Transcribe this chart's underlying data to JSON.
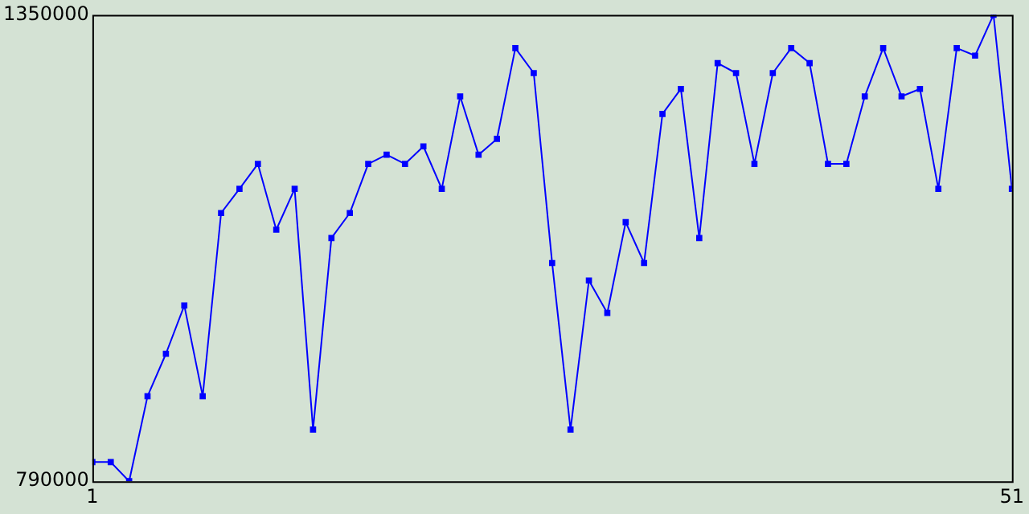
{
  "chart_data": {
    "type": "line",
    "marker": "square",
    "grid": false,
    "x": [
      1,
      2,
      3,
      4,
      5,
      6,
      7,
      8,
      9,
      10,
      11,
      12,
      13,
      14,
      15,
      16,
      17,
      18,
      19,
      20,
      21,
      22,
      23,
      24,
      25,
      26,
      27,
      28,
      29,
      30,
      31,
      32,
      33,
      34,
      35,
      36,
      37,
      38,
      39,
      40,
      41,
      42,
      43,
      44,
      45,
      46,
      47,
      48,
      49,
      50,
      51
    ],
    "series": [
      {
        "color": "#0000ff",
        "values": [
          813000,
          813000,
          790000,
          892000,
          943000,
          1001000,
          892000,
          1112000,
          1141000,
          1171000,
          1092000,
          1141000,
          852000,
          1082000,
          1112000,
          1171000,
          1182000,
          1171000,
          1192000,
          1141000,
          1252000,
          1182000,
          1201000,
          1310000,
          1280000,
          1052000,
          852000,
          1031000,
          992000,
          1101000,
          1052000,
          1231000,
          1261000,
          1082000,
          1292000,
          1280000,
          1171000,
          1280000,
          1310000,
          1292000,
          1171000,
          1171000,
          1252000,
          1310000,
          1252000,
          1261000,
          1141000,
          1310000,
          1301000,
          1350000,
          1141000
        ]
      }
    ],
    "xlim": [
      1,
      51
    ],
    "xticks": [
      1,
      51
    ],
    "ylim": [
      790000,
      1350000
    ],
    "yticks": [
      790000,
      1350000
    ]
  }
}
